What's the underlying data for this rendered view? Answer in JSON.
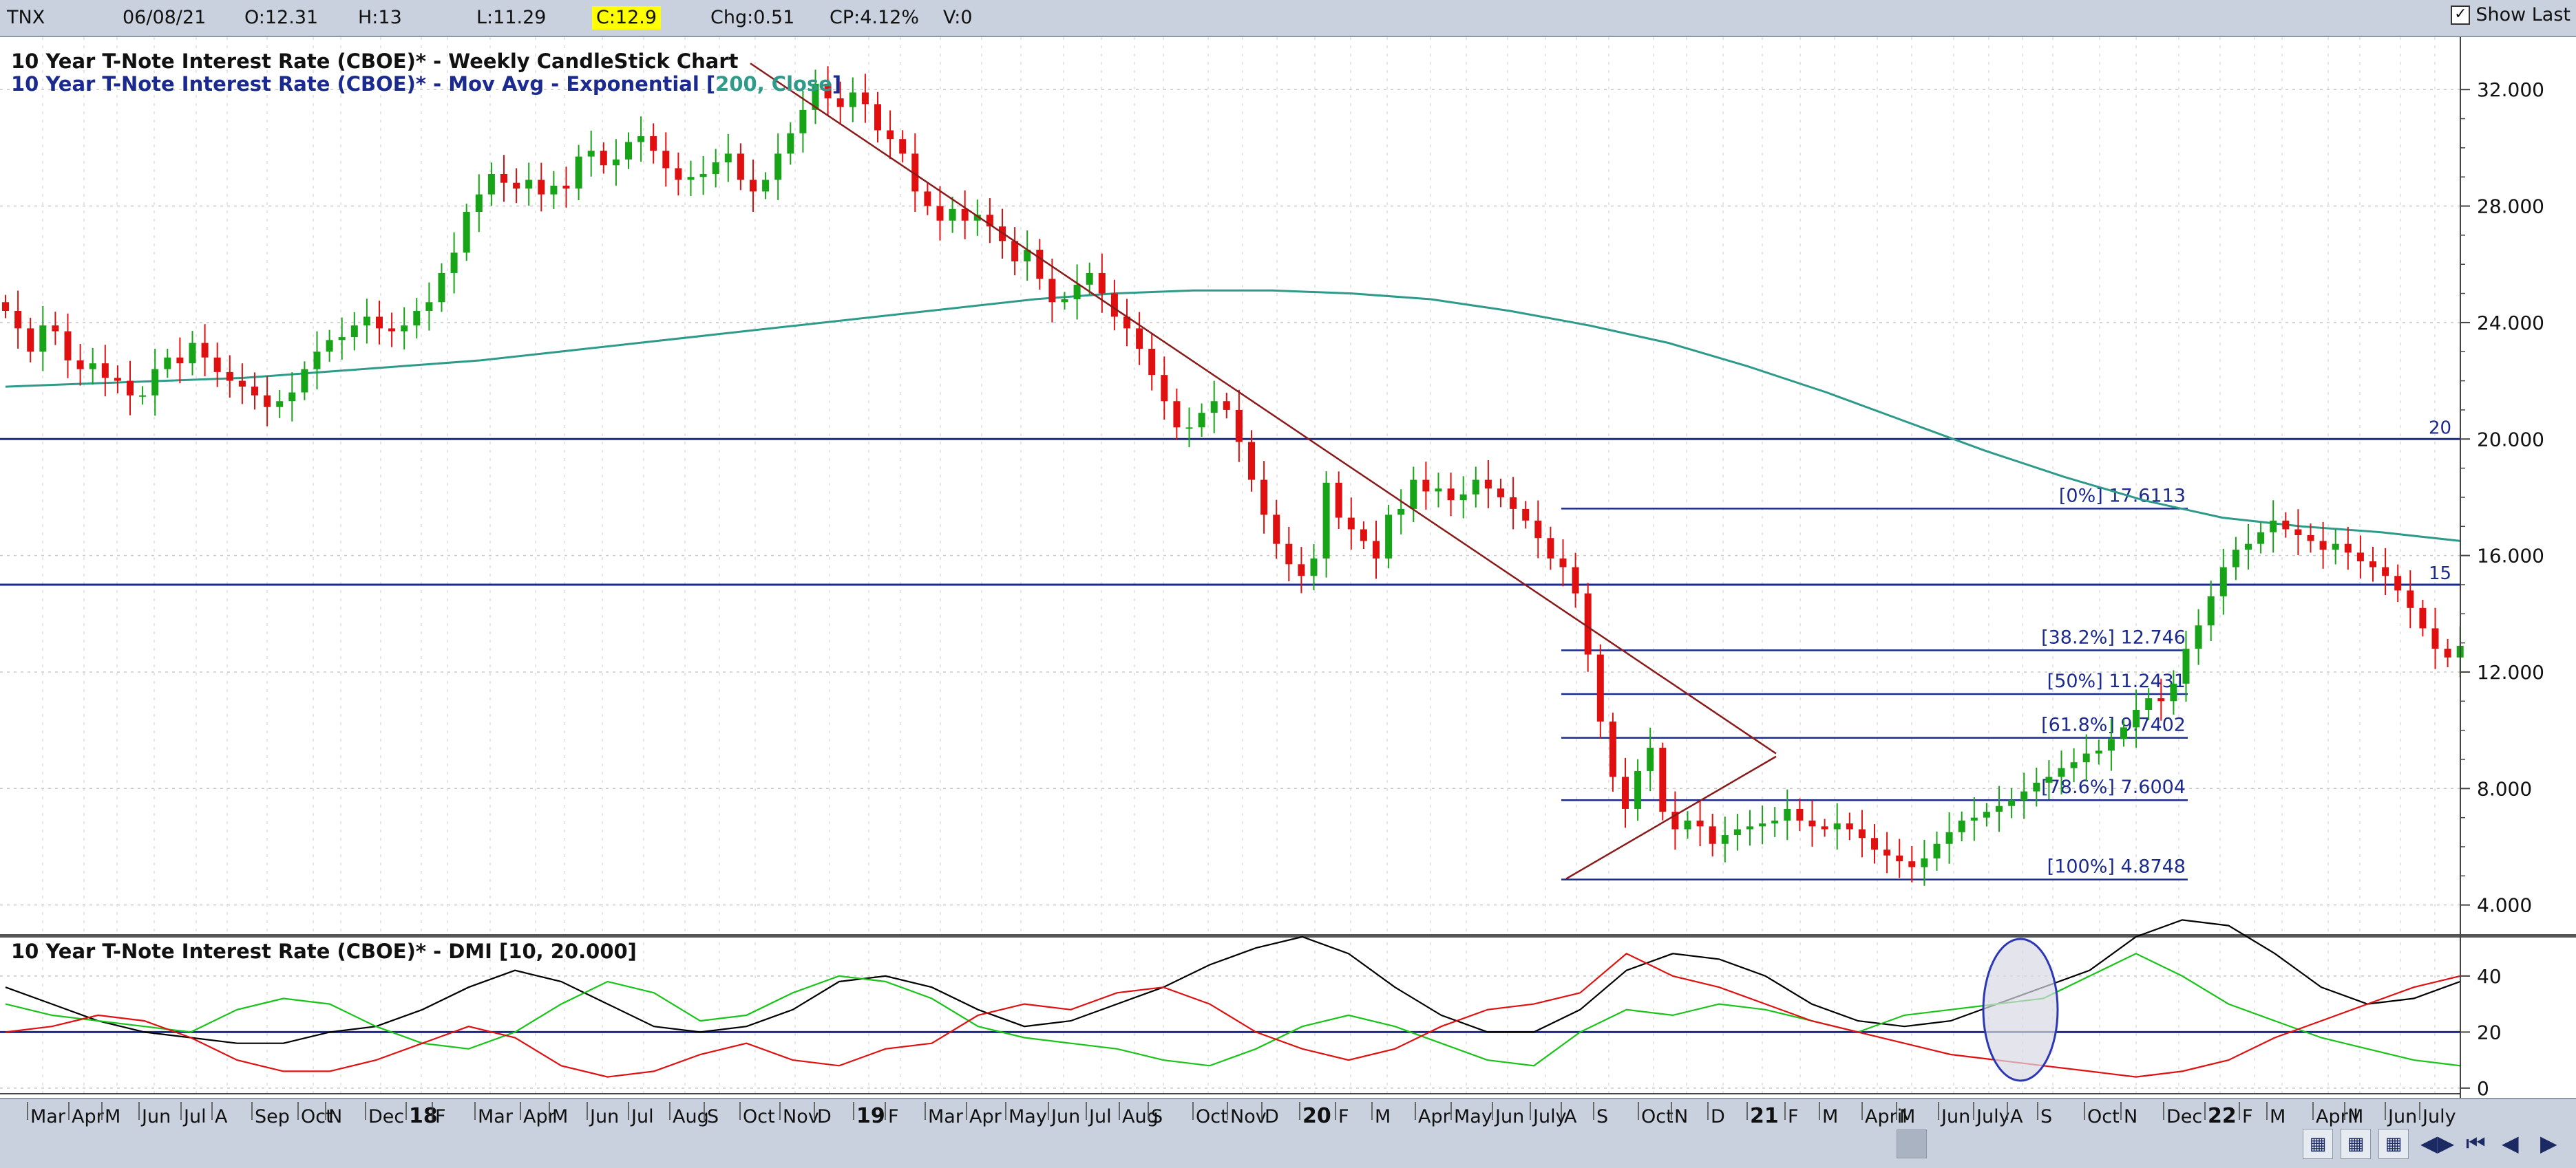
{
  "toolbar": {
    "symbol": "TNX",
    "date": "06/08/21",
    "open": "O:12.31",
    "high": "H:13",
    "low": "L:11.29",
    "close": "C:12.9",
    "change": "Chg:0.51",
    "change_pct": "CP:4.12%",
    "volume": "V:0",
    "show_last_label": "Show Last",
    "show_last_checked": true
  },
  "price_panel": {
    "title": "10 Year T-Note Interest Rate (CBOE)* - Weekly CandleStick Chart",
    "ma_prefix": "10 Year T-Note Interest Rate (CBOE)* - Mov Avg - Exponential [",
    "ma_params": "200, Close",
    "ma_suffix": "]",
    "y_ticks": [
      "32.000",
      "28.000",
      "24.000",
      "20.000",
      "16.000",
      "12.000",
      "8.000",
      "4.000"
    ],
    "hline_labels": [
      "20",
      "15"
    ],
    "fib_labels": [
      "[0%] 17.6113",
      "[38.2%] 12.746",
      "[50%] 11.2431",
      "[61.8%] 9.7402",
      "[78.6%] 7.6004",
      "[100%] 4.8748"
    ]
  },
  "dmi_panel": {
    "title": "10 Year T-Note Interest Rate (CBOE)* - DMI [10, 20.000]",
    "y_ticks": [
      "40",
      "20",
      "0"
    ]
  },
  "x_axis": {
    "labels": [
      "Mar",
      "Apr",
      "M",
      "Jun",
      "Jul",
      "A",
      "Sep",
      "Oct",
      "N",
      "Dec",
      "18",
      "F",
      "Mar",
      "Apr",
      "M",
      "Jun",
      "Jul",
      "Aug",
      "S",
      "Oct",
      "Nov",
      "D",
      "19",
      "F",
      "Mar",
      "Apr",
      "May",
      "Jun",
      "Jul",
      "Aug",
      "S",
      "Oct",
      "Nov",
      "D",
      "20",
      "F",
      "M",
      "Apr",
      "May",
      "Jun",
      "July",
      "A",
      "S",
      "Oct",
      "N",
      "D",
      "21",
      "F",
      "M",
      "April",
      "M",
      "Jun",
      "July",
      "A",
      "S",
      "Oct",
      "N",
      "Dec",
      "22",
      "F",
      "M",
      "April",
      "M",
      "Jun",
      "July"
    ],
    "bold_labels": [
      "18",
      "19",
      "20",
      "21",
      "22"
    ]
  },
  "colors": {
    "up": "#18a418",
    "down": "#e01010",
    "ema": "#2e9a8a",
    "hline": "#1b2a8f",
    "trend": "#8a1a1a",
    "adx": "#000000",
    "plus_di": "#19c419",
    "minus_di": "#e01010",
    "toolbar_bg": "#c9d1de",
    "highlight": "#ffff00"
  },
  "chart_data": [
    {
      "type": "candlestick",
      "title": "10 Year T-Note Interest Rate (CBOE)* - Weekly CandleStick Chart",
      "period": "weekly",
      "x_range": [
        "2017-03",
        "2022-07"
      ],
      "ylim": [
        3.0,
        33.8
      ],
      "weekly_closes_approx": [
        24.4,
        23.8,
        23.0,
        23.9,
        23.7,
        22.7,
        22.4,
        22.6,
        22.1,
        22.0,
        21.5,
        21.5,
        22.4,
        22.8,
        22.6,
        23.3,
        22.8,
        22.3,
        22.0,
        21.8,
        21.5,
        21.1,
        21.3,
        21.6,
        22.4,
        23.0,
        23.4,
        23.5,
        23.9,
        24.2,
        23.8,
        23.7,
        23.9,
        24.4,
        24.7,
        25.7,
        26.4,
        27.8,
        28.4,
        29.1,
        28.8,
        28.6,
        28.9,
        28.4,
        28.7,
        28.6,
        29.7,
        29.9,
        29.4,
        29.6,
        30.2,
        30.4,
        29.9,
        29.3,
        28.9,
        29.0,
        29.1,
        29.5,
        29.8,
        28.9,
        28.5,
        28.9,
        29.8,
        30.5,
        31.3,
        32.2,
        31.7,
        31.4,
        31.9,
        31.5,
        30.6,
        30.3,
        29.8,
        28.5,
        28.0,
        27.5,
        27.9,
        27.5,
        27.7,
        27.3,
        26.8,
        26.1,
        26.5,
        25.5,
        24.7,
        24.8,
        25.3,
        25.7,
        25.0,
        24.2,
        23.8,
        23.1,
        22.2,
        21.3,
        20.4,
        20.4,
        20.9,
        21.3,
        21.0,
        19.9,
        18.6,
        17.4,
        16.4,
        15.7,
        15.3,
        15.9,
        18.5,
        17.3,
        16.9,
        16.5,
        15.9,
        17.4,
        17.6,
        18.6,
        18.2,
        18.3,
        17.9,
        18.1,
        18.6,
        18.3,
        18.0,
        17.6,
        17.2,
        16.6,
        15.9,
        15.6,
        14.7,
        12.6,
        10.3,
        8.4,
        7.3,
        8.6,
        9.4,
        7.2,
        6.6,
        6.9,
        6.7,
        6.1,
        6.4,
        6.6,
        6.7,
        6.8,
        6.9,
        7.3,
        6.9,
        6.7,
        6.6,
        6.8,
        6.6,
        6.3,
        5.9,
        5.7,
        5.5,
        5.3,
        5.6,
        6.1,
        6.5,
        6.9,
        7.0,
        7.2,
        7.4,
        7.6,
        7.9,
        8.2,
        8.4,
        8.7,
        8.9,
        9.2,
        9.3,
        9.7,
        10.1,
        10.7,
        11.1,
        11.0,
        11.6,
        12.8,
        13.6,
        14.6,
        15.6,
        16.2,
        16.4,
        16.8,
        17.2,
        16.9,
        16.7,
        16.5,
        16.2,
        16.4,
        16.1,
        15.8,
        15.6,
        15.3,
        14.8,
        14.2,
        13.5,
        12.8,
        12.5,
        12.9
      ],
      "series": [
        {
          "name": "Mov Avg - Exponential [200, Close]",
          "values_approx": [
            21.8,
            21.9,
            22.0,
            22.1,
            22.3,
            22.5,
            22.7,
            23.0,
            23.3,
            23.6,
            23.9,
            24.2,
            24.5,
            24.8,
            25.0,
            25.1,
            25.1,
            25.0,
            24.8,
            24.4,
            23.9,
            23.3,
            22.5,
            21.6,
            20.6,
            19.6,
            18.7,
            17.9,
            17.3,
            17.0,
            16.8,
            16.5
          ],
          "x_range_approx": [
            "2017-03",
            "2021-07"
          ]
        }
      ],
      "horizontal_lines": [
        20,
        15
      ],
      "fibonacci": [
        {
          "level": "0%",
          "value": 17.6113
        },
        {
          "level": "38.2%",
          "value": 12.746
        },
        {
          "level": "50%",
          "value": 11.2431
        },
        {
          "level": "61.8%",
          "value": 9.7402
        },
        {
          "level": "78.6%",
          "value": 7.6004
        },
        {
          "level": "100%",
          "value": 4.8748
        }
      ],
      "trend_lines": [
        {
          "name": "downtrend",
          "from": {
            "date": "2018-10",
            "value": 32.9
          },
          "to": {
            "date": "2021-01",
            "value": 9.2
          }
        },
        {
          "name": "uptrend",
          "from": {
            "date": "2020-08",
            "value": 4.9
          },
          "to": {
            "date": "2021-01",
            "value": 9.1
          }
        }
      ]
    },
    {
      "type": "line",
      "title": "10 Year T-Note Interest Rate (CBOE)* - DMI [10, 20.000]",
      "ylim": [
        -2,
        52
      ],
      "reference_line": 20,
      "series": [
        {
          "name": "ADX",
          "values_approx": [
            36,
            30,
            24,
            20,
            18,
            16,
            16,
            20,
            22,
            28,
            36,
            42,
            38,
            30,
            22,
            20,
            22,
            28,
            38,
            40,
            36,
            28,
            22,
            24,
            30,
            36,
            44,
            50,
            54,
            48,
            36,
            26,
            20,
            20,
            28,
            42,
            48,
            46,
            40,
            30,
            24,
            22,
            24,
            30,
            36,
            42,
            54,
            60,
            58,
            48,
            36,
            30,
            32,
            38
          ]
        },
        {
          "name": "+DI",
          "values_approx": [
            30,
            26,
            24,
            22,
            20,
            28,
            32,
            30,
            22,
            16,
            14,
            20,
            30,
            38,
            34,
            24,
            26,
            34,
            40,
            38,
            32,
            22,
            18,
            16,
            14,
            10,
            8,
            14,
            22,
            26,
            22,
            16,
            10,
            8,
            20,
            28,
            26,
            30,
            28,
            24,
            20,
            26,
            28,
            30,
            32,
            40,
            48,
            40,
            30,
            24,
            18,
            14,
            10,
            8
          ]
        },
        {
          "name": "-DI",
          "values_approx": [
            20,
            22,
            26,
            24,
            18,
            10,
            6,
            6,
            10,
            16,
            22,
            18,
            8,
            4,
            6,
            12,
            16,
            10,
            8,
            14,
            16,
            26,
            30,
            28,
            34,
            36,
            30,
            20,
            14,
            10,
            14,
            22,
            28,
            30,
            34,
            48,
            40,
            36,
            30,
            24,
            20,
            16,
            12,
            10,
            8,
            6,
            4,
            6,
            10,
            18,
            24,
            30,
            36,
            40
          ]
        }
      ]
    }
  ]
}
